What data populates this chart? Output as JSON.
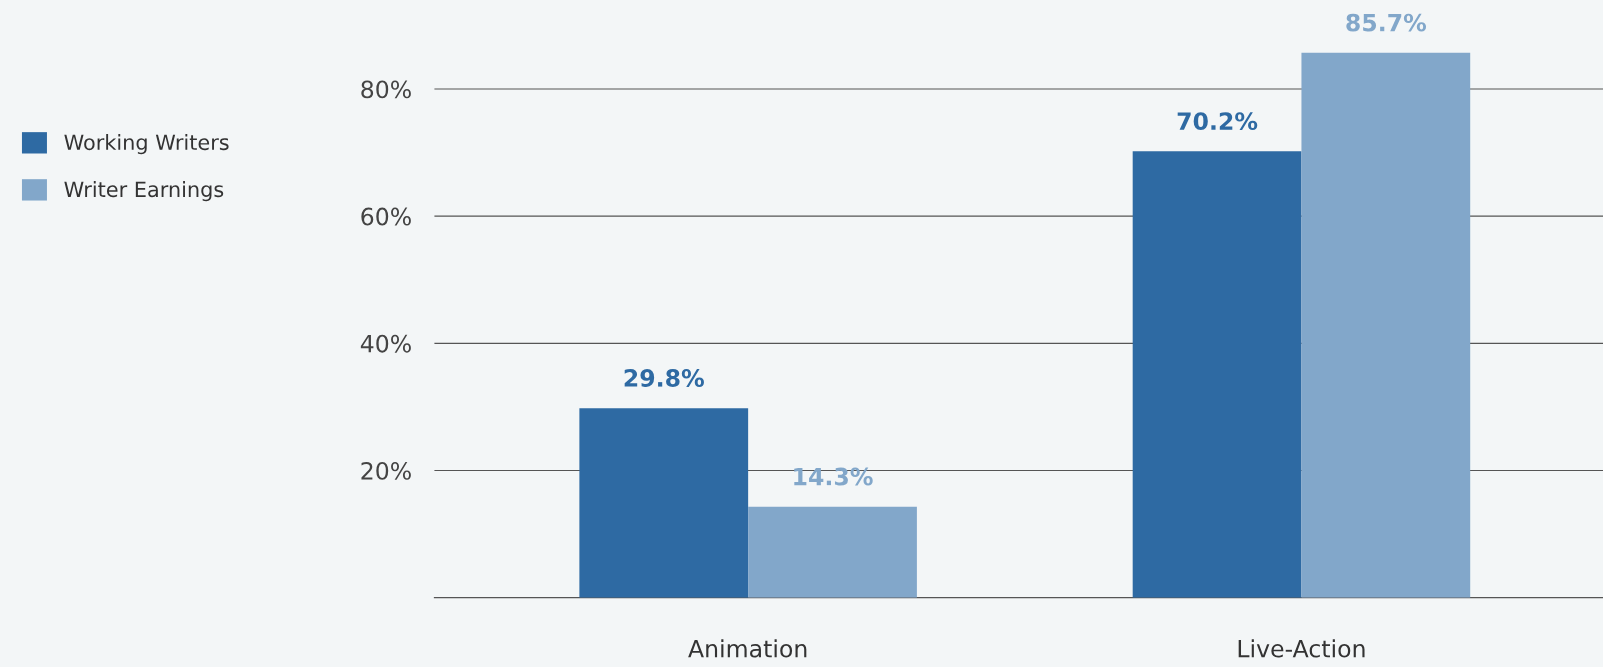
{
  "chart_data": {
    "type": "bar",
    "categories": [
      "Animation",
      "Live-Action"
    ],
    "series": [
      {
        "name": "Working Writers",
        "color": "#2e6aa3",
        "values": [
          29.8,
          70.2
        ],
        "value_labels": [
          "29.8%",
          "70.2%"
        ]
      },
      {
        "name": "Writer Earnings",
        "color": "#82a7ca",
        "values": [
          14.3,
          85.7
        ],
        "value_labels": [
          "14.3%",
          "85.7%"
        ]
      }
    ],
    "ylim": [
      0,
      94
    ],
    "yticks": [
      {
        "value": 20,
        "label": "20%"
      },
      {
        "value": 40,
        "label": "40%"
      },
      {
        "value": 60,
        "label": "60%"
      },
      {
        "value": 80,
        "label": "80%"
      }
    ],
    "grid": "y",
    "legend": "left"
  }
}
